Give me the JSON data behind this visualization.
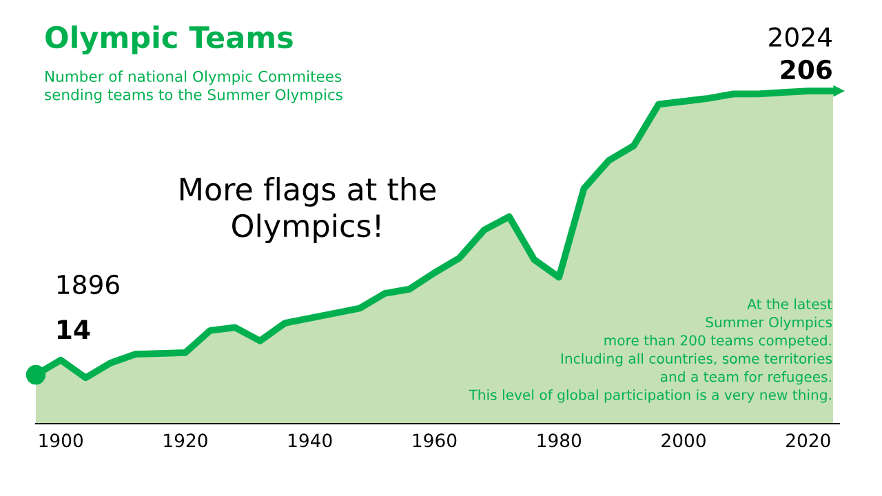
{
  "chart_data": {
    "type": "area",
    "title": "Olympic Teams",
    "subtitle": "Number of national Olympic Commitees\nsending teams to the Summer Olympics",
    "x": [
      1896,
      1900,
      1904,
      1908,
      1912,
      1920,
      1924,
      1928,
      1932,
      1936,
      1948,
      1952,
      1956,
      1960,
      1964,
      1968,
      1972,
      1976,
      1980,
      1984,
      1988,
      1992,
      1996,
      2000,
      2004,
      2008,
      2012,
      2016,
      2020,
      2024
    ],
    "series": [
      {
        "color": "#00b04f",
        "values": [
          14,
          24,
          12,
          22,
          28,
          29,
          44,
          46,
          37,
          49,
          59,
          69,
          72,
          83,
          93,
          112,
          121,
          92,
          80,
          140,
          159,
          169,
          197,
          199,
          201,
          204,
          204,
          205,
          206,
          206
        ],
        "value_labels": [
          "14",
          null,
          null,
          null,
          null,
          null,
          null,
          null,
          null,
          null,
          null,
          null,
          null,
          null,
          null,
          null,
          null,
          null,
          null,
          null,
          null,
          null,
          null,
          null,
          null,
          null,
          null,
          null,
          null,
          "206"
        ]
      }
    ],
    "xlim": [
      1896,
      2025
    ],
    "xticks": [
      1900,
      1920,
      1940,
      1960,
      1980,
      2000,
      2020
    ],
    "grid": false,
    "legend": false,
    "annotations": [
      "1896",
      "2024",
      "More flags at the\nOlympics!",
      "At the latest\nSummer Olympics\nmore than 200 teams competed.\nIncluding all countries, some territories\nand a team for refugees.\nThis level of global participation is a very new thing."
    ]
  }
}
